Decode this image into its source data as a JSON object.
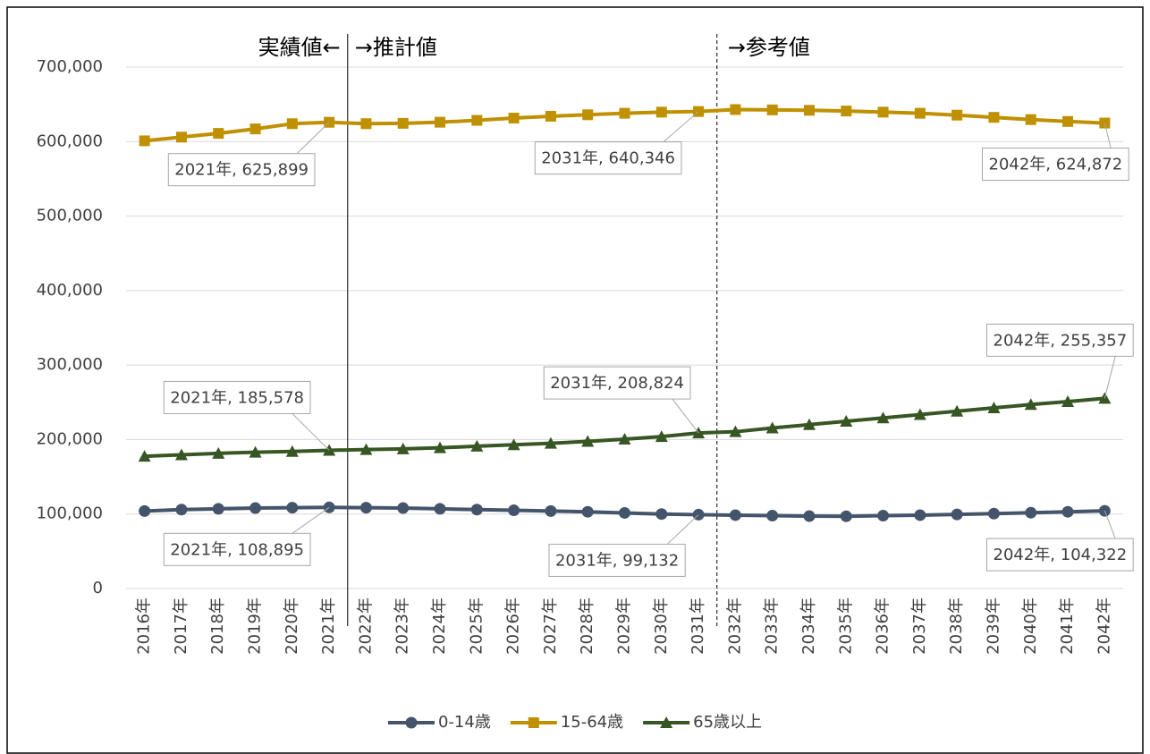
{
  "chart_data": {
    "type": "line",
    "annotations": [
      "実績値←",
      "→推計値",
      "→参考値"
    ],
    "categories": [
      "2016年",
      "2017年",
      "2018年",
      "2019年",
      "2020年",
      "2021年",
      "2022年",
      "2023年",
      "2024年",
      "2025年",
      "2026年",
      "2027年",
      "2028年",
      "2029年",
      "2030年",
      "2031年",
      "2032年",
      "2033年",
      "2034年",
      "2035年",
      "2036年",
      "2037年",
      "2038年",
      "2039年",
      "2040年",
      "2041年",
      "2042年"
    ],
    "series": [
      {
        "name": "0-14歳",
        "color": "#44546a",
        "marker": "circle",
        "values": [
          104000,
          106000,
          107000,
          108000,
          108500,
          108895,
          108500,
          108000,
          107000,
          106000,
          105000,
          104000,
          103000,
          101500,
          100000,
          99132,
          98500,
          97800,
          97200,
          97000,
          97800,
          98500,
          99500,
          100500,
          101800,
          103000,
          104322
        ],
        "value_labels": [
          null,
          null,
          null,
          null,
          null,
          "2021年, 108,895",
          null,
          null,
          null,
          null,
          null,
          null,
          null,
          null,
          null,
          "2031年, 99,132",
          null,
          null,
          null,
          null,
          null,
          null,
          null,
          null,
          null,
          null,
          "2042年, 104,322"
        ]
      },
      {
        "name": "15-64歳",
        "color": "#bf9000",
        "marker": "square",
        "values": [
          601000,
          606000,
          611000,
          617000,
          624000,
          625899,
          624000,
          624500,
          626000,
          628500,
          631500,
          634000,
          636000,
          638000,
          639500,
          640346,
          643000,
          642500,
          642000,
          641000,
          639500,
          638000,
          635500,
          632500,
          629500,
          627000,
          624872
        ],
        "value_labels": [
          null,
          null,
          null,
          null,
          null,
          "2021年, 625,899",
          null,
          null,
          null,
          null,
          null,
          null,
          null,
          null,
          null,
          "2031年, 640,346",
          null,
          null,
          null,
          null,
          null,
          null,
          null,
          null,
          null,
          null,
          "2042年, 624,872"
        ]
      },
      {
        "name": "65歳以上",
        "color": "#375623",
        "marker": "triangle",
        "values": [
          177500,
          179500,
          181500,
          183000,
          184000,
          185578,
          186500,
          187500,
          189000,
          191000,
          193000,
          195000,
          197500,
          200500,
          204000,
          208824,
          210500,
          215500,
          220000,
          224500,
          229000,
          233500,
          238000,
          242500,
          247000,
          251000,
          255357
        ],
        "value_labels": [
          null,
          null,
          null,
          null,
          null,
          "2021年, 185,578",
          null,
          null,
          null,
          null,
          null,
          null,
          null,
          null,
          null,
          "2031年, 208,824",
          null,
          null,
          null,
          null,
          null,
          null,
          null,
          null,
          null,
          null,
          "2042年, 255,357"
        ]
      }
    ],
    "ylim": [
      0,
      700000
    ],
    "yticks": [
      0,
      {
        "value": 100000,
        "label": "100,000"
      },
      {
        "value": 200000,
        "label": "200,000"
      },
      {
        "value": 300000,
        "label": "300,000"
      },
      {
        "value": 400000,
        "label": "400,000"
      },
      {
        "value": 500000,
        "label": "500,000"
      },
      {
        "value": 600000,
        "label": "600,000"
      },
      {
        "value": 700000,
        "label": "700,000"
      }
    ],
    "grid": true,
    "legend": "bottom"
  }
}
